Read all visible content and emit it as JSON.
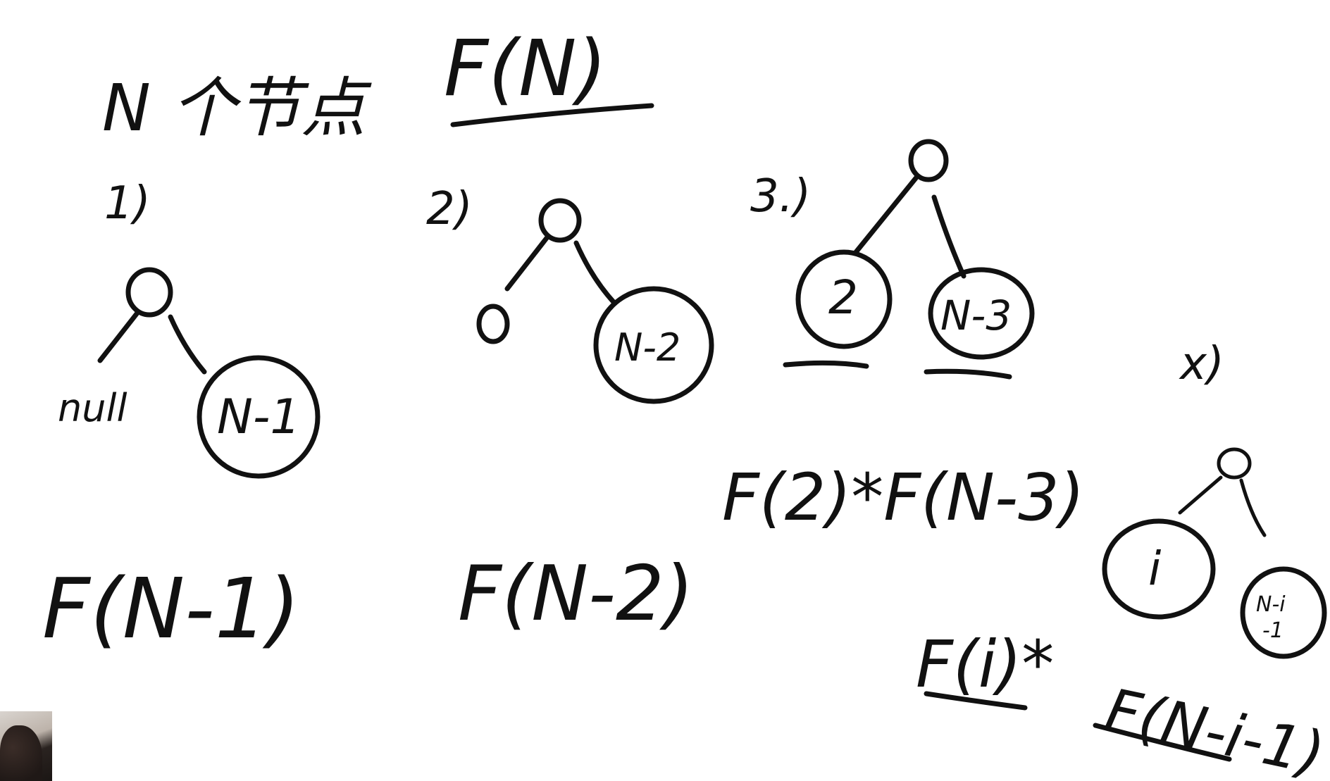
{
  "header": {
    "n_nodes": "N 个节点",
    "f_n": "F(N)"
  },
  "cases": [
    {
      "label": "1)",
      "left_child": "null",
      "right_child": "N-1",
      "formula": "F(N-1)"
    },
    {
      "label": "2)",
      "left_child": "",
      "right_child": "N-2",
      "formula": "F(N-2)"
    },
    {
      "label": "3.)",
      "left_child": "2",
      "right_child": "N-3",
      "formula": "F(2)*F(N-3)"
    },
    {
      "label": "x)",
      "left_child": "i",
      "right_child_top": "N-i",
      "right_child_bottom": "-1",
      "formula_left": "F(i)*",
      "formula_right": "F(N-i-1)"
    }
  ]
}
